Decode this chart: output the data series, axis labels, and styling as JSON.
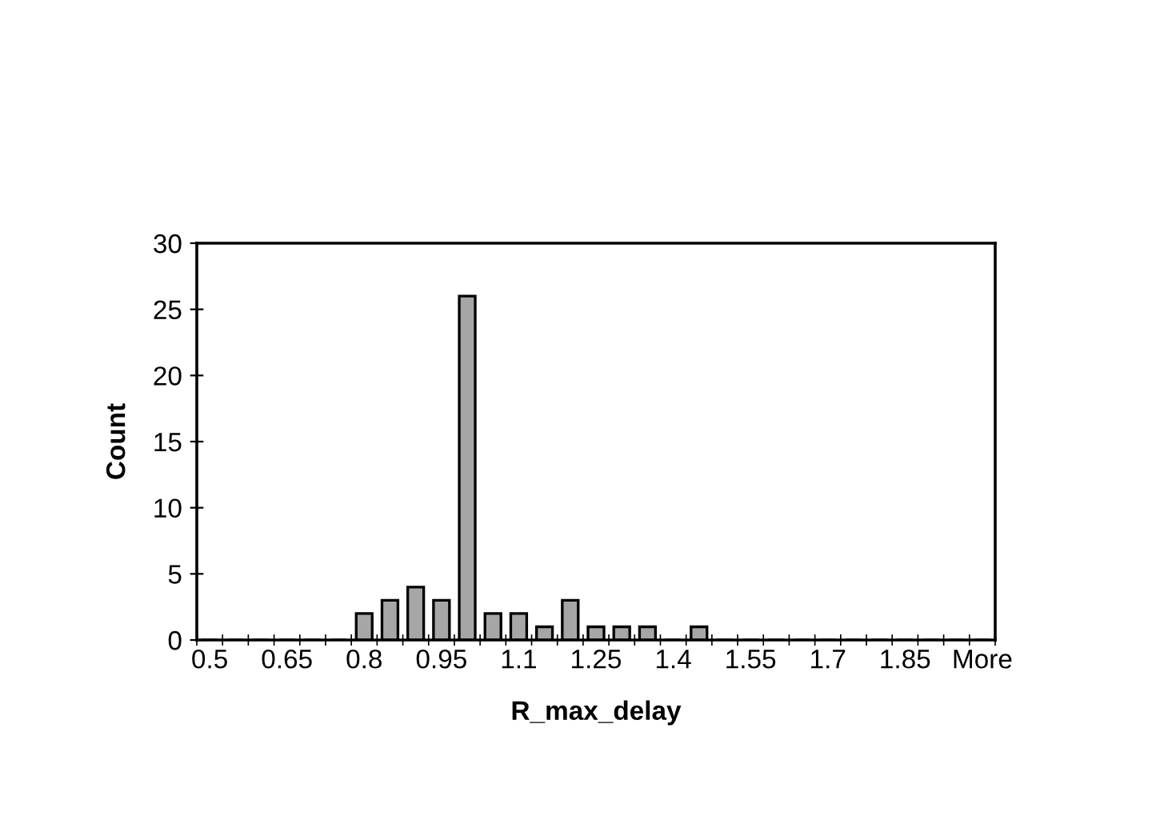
{
  "chart_data": {
    "type": "bar",
    "xlabel": "R_max_delay",
    "ylabel": "Count",
    "categories": [
      "0.5",
      null,
      null,
      "0.65",
      null,
      null,
      "0.8",
      null,
      null,
      "0.95",
      null,
      null,
      "1.1",
      null,
      null,
      "1.25",
      null,
      null,
      "1.4",
      null,
      null,
      "1.55",
      null,
      null,
      "1.7",
      null,
      null,
      "1.85",
      null,
      null,
      "More"
    ],
    "values": [
      0,
      0,
      0,
      0,
      0,
      0,
      2,
      3,
      4,
      3,
      26,
      2,
      2,
      1,
      3,
      1,
      1,
      1,
      0,
      1,
      0,
      0,
      0,
      0,
      0,
      0,
      0,
      0,
      0,
      0,
      0
    ],
    "color": "#a6a6a6",
    "ylim": [
      0,
      30
    ],
    "yticks": [
      0,
      5,
      10,
      15,
      20,
      25,
      30
    ],
    "grid": false,
    "legend": false
  }
}
